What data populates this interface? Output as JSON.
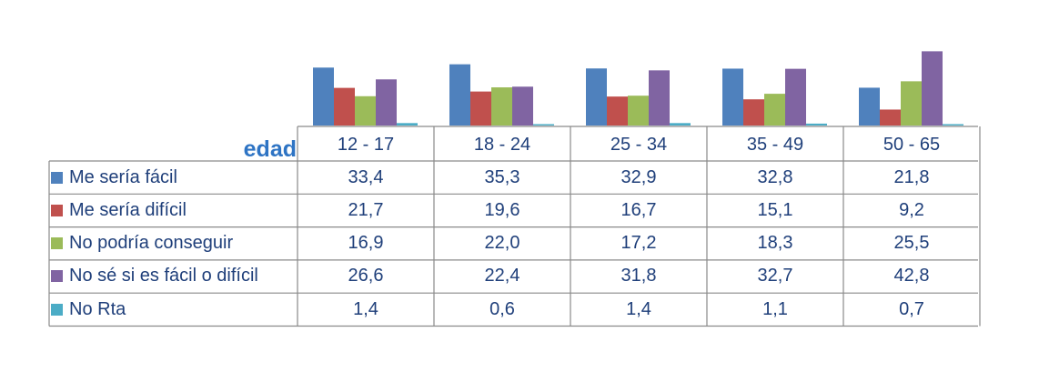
{
  "chart_data": {
    "type": "bar",
    "corner_label": "edad",
    "categories": [
      "12 - 17",
      "18 - 24",
      "25 - 34",
      "35 - 49",
      "50 - 65"
    ],
    "series": [
      {
        "name": "Me sería fácil",
        "color": "#4f81bd",
        "values": [
          33.4,
          35.3,
          32.9,
          32.8,
          21.8
        ],
        "labels": [
          "33,4",
          "35,3",
          "32,9",
          "32,8",
          "21,8"
        ]
      },
      {
        "name": "Me sería difícil",
        "color": "#c0504d",
        "values": [
          21.7,
          19.6,
          16.7,
          15.1,
          9.2
        ],
        "labels": [
          "21,7",
          "19,6",
          "16,7",
          "15,1",
          "9,2"
        ]
      },
      {
        "name": "No podría conseguir",
        "color": "#9bbb59",
        "values": [
          16.9,
          22.0,
          17.2,
          18.3,
          25.5
        ],
        "labels": [
          "16,9",
          "22,0",
          "17,2",
          "18,3",
          "25,5"
        ]
      },
      {
        "name": "No sé si es fácil o difícil",
        "color": "#8064a2",
        "values": [
          26.6,
          22.4,
          31.8,
          32.7,
          42.8
        ],
        "labels": [
          "26,6",
          "22,4",
          "31,8",
          "32,7",
          "42,8"
        ]
      },
      {
        "name": "No Rta",
        "color": "#4bacc6",
        "values": [
          1.4,
          0.6,
          1.4,
          1.1,
          0.7
        ],
        "labels": [
          "1,4",
          "0,6",
          "1,4",
          "1,1",
          "0,7"
        ]
      }
    ],
    "ylim": [
      0,
      43
    ],
    "grid": false,
    "legend": "table-left"
  }
}
